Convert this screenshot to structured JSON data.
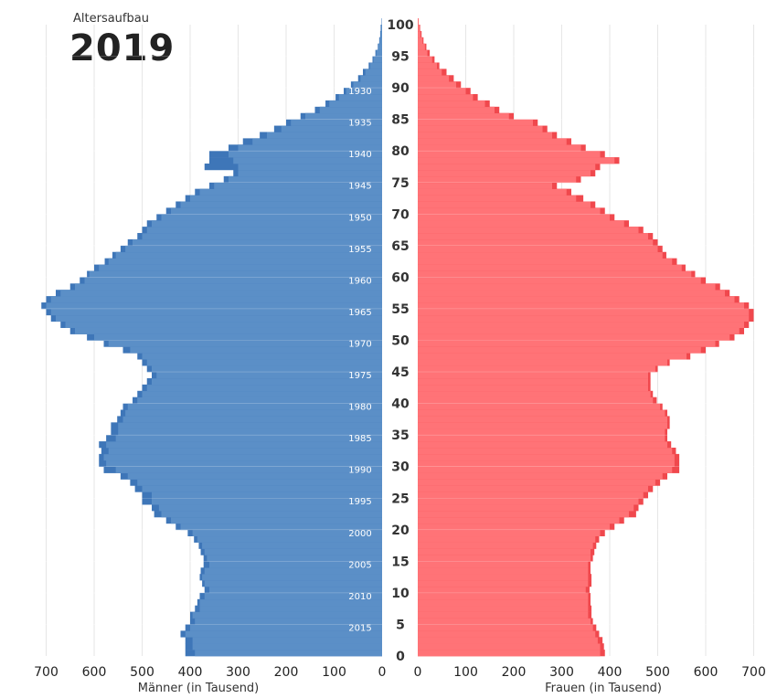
{
  "header": {
    "subtitle": "Altersaufbau",
    "year": "2019"
  },
  "chart_data": {
    "type": "bar",
    "orientation": "horizontal-pyramid",
    "title": "Altersaufbau 2019",
    "center_axis_ticks": [
      "0",
      "5",
      "10",
      "15",
      "20",
      "25",
      "30",
      "35",
      "40",
      "45",
      "50",
      "55",
      "60",
      "65",
      "70",
      "75",
      "80",
      "85",
      "90",
      "95",
      "100"
    ],
    "birth_year_labels": [
      "1930",
      "1935",
      "1940",
      "1945",
      "1950",
      "1955",
      "1960",
      "1965",
      "1970",
      "1975",
      "1980",
      "1985",
      "1990",
      "1995",
      "2000",
      "2005",
      "2010",
      "2015"
    ],
    "birth_year_label_ages": [
      89,
      84,
      79,
      74,
      69,
      64,
      59,
      54,
      49,
      44,
      39,
      34,
      29,
      24,
      19,
      14,
      9,
      4
    ],
    "age_range": [
      0,
      100
    ],
    "male_axis": {
      "label": "Männer (in Tausend)",
      "ticks": [
        "700",
        "600",
        "500",
        "400",
        "300",
        "200",
        "100",
        "0"
      ],
      "max": 700
    },
    "female_axis": {
      "label": "Frauen (in Tausend)",
      "ticks": [
        "0",
        "100",
        "200",
        "300",
        "400",
        "500",
        "600",
        "700"
      ],
      "max": 700
    },
    "series": [
      {
        "name": "Männer",
        "color": "#5b8fc7",
        "overlay_color": "#3e76b8",
        "ages": [
          0,
          1,
          2,
          3,
          4,
          5,
          6,
          7,
          8,
          9,
          10,
          11,
          12,
          13,
          14,
          15,
          16,
          17,
          18,
          19,
          20,
          21,
          22,
          23,
          24,
          25,
          26,
          27,
          28,
          29,
          30,
          31,
          32,
          33,
          34,
          35,
          36,
          37,
          38,
          39,
          40,
          41,
          42,
          43,
          44,
          45,
          46,
          47,
          48,
          49,
          50,
          51,
          52,
          53,
          54,
          55,
          56,
          57,
          58,
          59,
          60,
          61,
          62,
          63,
          64,
          65,
          66,
          67,
          68,
          69,
          70,
          71,
          72,
          73,
          74,
          75,
          76,
          77,
          78,
          79,
          80,
          81,
          82,
          83,
          84,
          85,
          86,
          87,
          88,
          89,
          90,
          91,
          92,
          93,
          94,
          95,
          96,
          97,
          98,
          99,
          100
        ],
        "values": [
          390,
          395,
          395,
          410,
          400,
          390,
          395,
          380,
          380,
          370,
          360,
          370,
          375,
          370,
          360,
          365,
          370,
          375,
          385,
          395,
          420,
          440,
          460,
          465,
          480,
          480,
          500,
          510,
          530,
          555,
          575,
          580,
          570,
          575,
          555,
          550,
          550,
          540,
          535,
          530,
          510,
          500,
          490,
          480,
          470,
          480,
          490,
          500,
          525,
          570,
          600,
          640,
          660,
          680,
          690,
          700,
          690,
          670,
          640,
          620,
          610,
          590,
          570,
          555,
          535,
          520,
          500,
          490,
          480,
          460,
          440,
          420,
          400,
          380,
          350,
          320,
          300,
          300,
          310,
          320,
          300,
          270,
          240,
          210,
          190,
          160,
          130,
          110,
          90,
          75,
          60,
          45,
          35,
          25,
          18,
          12,
          8,
          5,
          3,
          2,
          1
        ],
        "overlay_values": [
          410,
          410,
          410,
          420,
          410,
          400,
          400,
          390,
          385,
          380,
          370,
          375,
          380,
          378,
          372,
          372,
          378,
          382,
          392,
          405,
          430,
          450,
          475,
          480,
          500,
          500,
          515,
          525,
          545,
          580,
          590,
          590,
          585,
          590,
          575,
          565,
          565,
          552,
          545,
          540,
          520,
          510,
          500,
          490,
          480,
          490,
          500,
          510,
          540,
          580,
          615,
          650,
          670,
          690,
          700,
          710,
          700,
          680,
          650,
          630,
          615,
          600,
          578,
          562,
          545,
          530,
          510,
          500,
          490,
          470,
          450,
          430,
          410,
          390,
          360,
          330,
          310,
          370,
          360,
          360,
          320,
          290,
          255,
          225,
          200,
          170,
          140,
          118,
          97,
          80,
          65,
          50,
          40,
          28,
          20,
          14,
          9,
          6,
          4,
          3,
          1
        ]
      },
      {
        "name": "Frauen",
        "color": "#ff7377",
        "overlay_color": "#f0484d",
        "ages": [
          0,
          1,
          2,
          3,
          4,
          5,
          6,
          7,
          8,
          9,
          10,
          11,
          12,
          13,
          14,
          15,
          16,
          17,
          18,
          19,
          20,
          21,
          22,
          23,
          24,
          25,
          26,
          27,
          28,
          29,
          30,
          31,
          32,
          33,
          34,
          35,
          36,
          37,
          38,
          39,
          40,
          41,
          42,
          43,
          44,
          45,
          46,
          47,
          48,
          49,
          50,
          51,
          52,
          53,
          54,
          55,
          56,
          57,
          58,
          59,
          60,
          61,
          62,
          63,
          64,
          65,
          66,
          67,
          68,
          69,
          70,
          71,
          72,
          73,
          74,
          75,
          76,
          77,
          78,
          79,
          80,
          81,
          82,
          83,
          84,
          85,
          86,
          87,
          88,
          89,
          90,
          91,
          92,
          93,
          94,
          95,
          96,
          97,
          98,
          99,
          100
        ],
        "values": [
          380,
          380,
          375,
          370,
          365,
          360,
          355,
          355,
          355,
          355,
          350,
          355,
          355,
          355,
          355,
          360,
          360,
          365,
          370,
          380,
          400,
          420,
          440,
          450,
          460,
          470,
          480,
          495,
          510,
          530,
          535,
          535,
          530,
          520,
          515,
          515,
          520,
          520,
          515,
          505,
          490,
          485,
          480,
          480,
          480,
          495,
          520,
          560,
          590,
          620,
          650,
          670,
          680,
          690,
          690,
          680,
          660,
          640,
          620,
          590,
          570,
          550,
          530,
          510,
          500,
          490,
          480,
          460,
          430,
          400,
          380,
          360,
          330,
          310,
          280,
          330,
          360,
          370,
          410,
          380,
          340,
          310,
          280,
          260,
          240,
          190,
          160,
          140,
          115,
          100,
          80,
          65,
          50,
          40,
          30,
          20,
          15,
          10,
          6,
          4,
          2
        ],
        "overlay_values": [
          390,
          388,
          385,
          378,
          372,
          365,
          362,
          362,
          360,
          360,
          358,
          362,
          362,
          360,
          360,
          365,
          368,
          372,
          378,
          390,
          410,
          430,
          455,
          460,
          470,
          480,
          490,
          505,
          520,
          545,
          545,
          545,
          538,
          528,
          520,
          520,
          525,
          525,
          520,
          510,
          498,
          490,
          485,
          485,
          485,
          500,
          525,
          568,
          600,
          628,
          660,
          680,
          690,
          700,
          700,
          690,
          670,
          650,
          630,
          600,
          578,
          558,
          540,
          518,
          510,
          500,
          490,
          470,
          440,
          410,
          390,
          370,
          345,
          320,
          290,
          340,
          370,
          380,
          420,
          390,
          350,
          320,
          290,
          270,
          250,
          200,
          170,
          150,
          125,
          110,
          90,
          75,
          60,
          45,
          35,
          25,
          18,
          12,
          8,
          5,
          2
        ]
      }
    ]
  }
}
